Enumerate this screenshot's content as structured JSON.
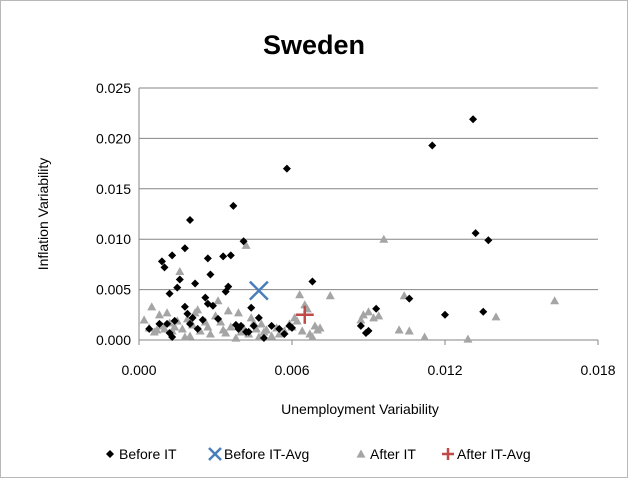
{
  "chart_data": {
    "type": "scatter",
    "title": "Sweden",
    "xlabel": "Unemployment Variability",
    "ylabel": "Inflation Variability",
    "xlim": [
      0,
      0.018
    ],
    "ylim": [
      0,
      0.025
    ],
    "xticks": [
      "0.000",
      "0.006",
      "0.012",
      "0.018"
    ],
    "yticks": [
      "0.000",
      "0.005",
      "0.010",
      "0.015",
      "0.020",
      "0.025"
    ],
    "grid": "horizontal",
    "legend_position": "bottom",
    "series": [
      {
        "name": "Before IT",
        "marker": "diamond",
        "color": "#000000",
        "points": [
          [
            0.0004,
            0.0011
          ],
          [
            0.0008,
            0.0016
          ],
          [
            0.0009,
            0.0078
          ],
          [
            0.001,
            0.0072
          ],
          [
            0.0011,
            0.0016
          ],
          [
            0.0012,
            0.0046
          ],
          [
            0.0012,
            0.0007
          ],
          [
            0.0013,
            0.0003
          ],
          [
            0.0013,
            0.0084
          ],
          [
            0.0014,
            0.0019
          ],
          [
            0.0015,
            0.0052
          ],
          [
            0.0016,
            0.006
          ],
          [
            0.0018,
            0.0091
          ],
          [
            0.0018,
            0.0033
          ],
          [
            0.0019,
            0.0026
          ],
          [
            0.002,
            0.0119
          ],
          [
            0.002,
            0.0016
          ],
          [
            0.0021,
            0.0022
          ],
          [
            0.0022,
            0.0056
          ],
          [
            0.0023,
            0.0011
          ],
          [
            0.0025,
            0.002
          ],
          [
            0.0026,
            0.0042
          ],
          [
            0.0027,
            0.0081
          ],
          [
            0.0027,
            0.0036
          ],
          [
            0.0028,
            0.0065
          ],
          [
            0.0029,
            0.0034
          ],
          [
            0.0031,
            0.0021
          ],
          [
            0.0033,
            0.0083
          ],
          [
            0.0034,
            0.0048
          ],
          [
            0.0035,
            0.0053
          ],
          [
            0.0036,
            0.0084
          ],
          [
            0.0037,
            0.0133
          ],
          [
            0.0038,
            0.0015
          ],
          [
            0.0039,
            0.0011
          ],
          [
            0.004,
            0.0014
          ],
          [
            0.0041,
            0.0098
          ],
          [
            0.0042,
            0.0008
          ],
          [
            0.0043,
            0.0008
          ],
          [
            0.0044,
            0.0032
          ],
          [
            0.0045,
            0.0014
          ],
          [
            0.0047,
            0.0022
          ],
          [
            0.0049,
            0.0002
          ],
          [
            0.0052,
            0.0014
          ],
          [
            0.0055,
            0.0011
          ],
          [
            0.0057,
            0.0006
          ],
          [
            0.0058,
            0.017
          ],
          [
            0.0059,
            0.0014
          ],
          [
            0.006,
            0.0012
          ],
          [
            0.0068,
            0.0058
          ],
          [
            0.0087,
            0.0014
          ],
          [
            0.0089,
            0.0007
          ],
          [
            0.009,
            0.0009
          ],
          [
            0.0093,
            0.0031
          ],
          [
            0.0106,
            0.0041
          ],
          [
            0.0115,
            0.0193
          ],
          [
            0.012,
            0.0025
          ],
          [
            0.0131,
            0.0219
          ],
          [
            0.0132,
            0.0106
          ],
          [
            0.0135,
            0.0028
          ],
          [
            0.0137,
            0.0099
          ]
        ]
      },
      {
        "name": "Before IT-Avg",
        "marker": "x",
        "color": "#4a7ebb",
        "points": [
          [
            0.0047,
            0.0049
          ]
        ]
      },
      {
        "name": "After IT",
        "marker": "triangle",
        "color": "#a5a5a5",
        "points": [
          [
            0.0002,
            0.002
          ],
          [
            0.0004,
            0.0012
          ],
          [
            0.0005,
            0.0033
          ],
          [
            0.0006,
            0.0008
          ],
          [
            0.0007,
            0.001
          ],
          [
            0.0008,
            0.0025
          ],
          [
            0.0009,
            0.0014
          ],
          [
            0.001,
            0.0011
          ],
          [
            0.0011,
            0.0027
          ],
          [
            0.0012,
            0.0017
          ],
          [
            0.0013,
            0.0009
          ],
          [
            0.0014,
            0.0013
          ],
          [
            0.0015,
            0.0019
          ],
          [
            0.0016,
            0.0068
          ],
          [
            0.0017,
            0.0011
          ],
          [
            0.0018,
            0.0003
          ],
          [
            0.0019,
            0.0021
          ],
          [
            0.002,
            0.0004
          ],
          [
            0.0021,
            0.0015
          ],
          [
            0.0022,
            0.0027
          ],
          [
            0.0023,
            0.003
          ],
          [
            0.0024,
            0.0009
          ],
          [
            0.0026,
            0.0018
          ],
          [
            0.0027,
            0.0013
          ],
          [
            0.0028,
            0.0006
          ],
          [
            0.003,
            0.0024
          ],
          [
            0.0031,
            0.0039
          ],
          [
            0.0032,
            0.0018
          ],
          [
            0.0033,
            0.001
          ],
          [
            0.0034,
            0.0007
          ],
          [
            0.0035,
            0.0029
          ],
          [
            0.0036,
            0.0013
          ],
          [
            0.0038,
            0.0002
          ],
          [
            0.0039,
            0.0027
          ],
          [
            0.004,
            0.0008
          ],
          [
            0.0041,
            0.0012
          ],
          [
            0.0042,
            0.0094
          ],
          [
            0.0043,
            0.0006
          ],
          [
            0.0044,
            0.0022
          ],
          [
            0.0045,
            0.0017
          ],
          [
            0.0046,
            0.0011
          ],
          [
            0.0047,
            0.0003
          ],
          [
            0.0048,
            0.0016
          ],
          [
            0.0049,
            0.0008
          ],
          [
            0.005,
            0.001
          ],
          [
            0.0052,
            0.0004
          ],
          [
            0.0054,
            0.0012
          ],
          [
            0.0055,
            0.0006
          ],
          [
            0.0057,
            0.0009
          ],
          [
            0.0059,
            0.0016
          ],
          [
            0.006,
            0.0013
          ],
          [
            0.0061,
            0.0022
          ],
          [
            0.0062,
            0.0019
          ],
          [
            0.0063,
            0.0045
          ],
          [
            0.0064,
            0.0009
          ],
          [
            0.0065,
            0.0035
          ],
          [
            0.0066,
            0.0031
          ],
          [
            0.0067,
            0.0006
          ],
          [
            0.0068,
            0.0003
          ],
          [
            0.0069,
            0.0014
          ],
          [
            0.007,
            0.001
          ],
          [
            0.0071,
            0.0012
          ],
          [
            0.0075,
            0.0044
          ],
          [
            0.0087,
            0.002
          ],
          [
            0.0088,
            0.0025
          ],
          [
            0.009,
            0.0028
          ],
          [
            0.0092,
            0.0022
          ],
          [
            0.0094,
            0.0024
          ],
          [
            0.0096,
            0.01
          ],
          [
            0.0102,
            0.001
          ],
          [
            0.0104,
            0.0044
          ],
          [
            0.0106,
            0.0009
          ],
          [
            0.0112,
            0.0003
          ],
          [
            0.0129,
            0.0001
          ],
          [
            0.014,
            0.0023
          ],
          [
            0.0163,
            0.0039
          ]
        ]
      },
      {
        "name": "After IT-Avg",
        "marker": "plus",
        "color": "#be4b48",
        "points": [
          [
            0.0065,
            0.0025
          ]
        ]
      }
    ]
  }
}
